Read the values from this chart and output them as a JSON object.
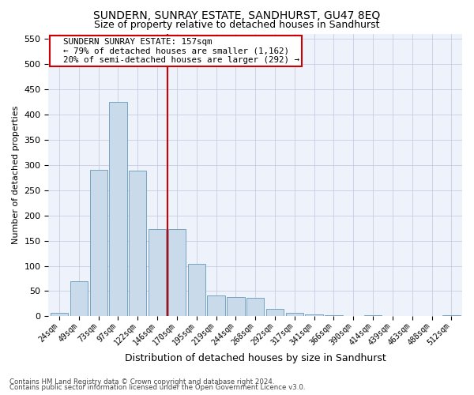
{
  "title": "SUNDERN, SUNRAY ESTATE, SANDHURST, GU47 8EQ",
  "subtitle": "Size of property relative to detached houses in Sandhurst",
  "xlabel": "Distribution of detached houses by size in Sandhurst",
  "ylabel": "Number of detached properties",
  "bar_color": "#c9daea",
  "bar_edge_color": "#6699bb",
  "categories": [
    "24sqm",
    "49sqm",
    "73sqm",
    "97sqm",
    "122sqm",
    "146sqm",
    "170sqm",
    "195sqm",
    "219sqm",
    "244sqm",
    "268sqm",
    "292sqm",
    "317sqm",
    "341sqm",
    "366sqm",
    "390sqm",
    "414sqm",
    "439sqm",
    "463sqm",
    "488sqm",
    "512sqm"
  ],
  "values": [
    7,
    69,
    290,
    425,
    288,
    172,
    172,
    104,
    42,
    38,
    37,
    15,
    7,
    4,
    2,
    0,
    3,
    0,
    0,
    0,
    2
  ],
  "ylim": [
    0,
    560
  ],
  "yticks": [
    0,
    50,
    100,
    150,
    200,
    250,
    300,
    350,
    400,
    450,
    500,
    550
  ],
  "vline_x_idx": 5.5,
  "vline_color": "#cc0000",
  "annotation_line1": "  SUNDERN SUNRAY ESTATE: 157sqm",
  "annotation_line2": "  ← 79% of detached houses are smaller (1,162)",
  "annotation_line3": "  20% of semi-detached houses are larger (292) →",
  "annotation_box_color": "#ffffff",
  "annotation_box_edge_color": "#cc0000",
  "footer_line1": "Contains HM Land Registry data © Crown copyright and database right 2024.",
  "footer_line2": "Contains public sector information licensed under the Open Government Licence v3.0.",
  "background_color": "#eef2fb",
  "grid_color": "#c8cce0",
  "title_fontsize": 10,
  "subtitle_fontsize": 9,
  "tick_fontsize": 7,
  "ylabel_fontsize": 8,
  "xlabel_fontsize": 9,
  "annotation_fontsize": 7.8,
  "footer_fontsize": 6.2
}
